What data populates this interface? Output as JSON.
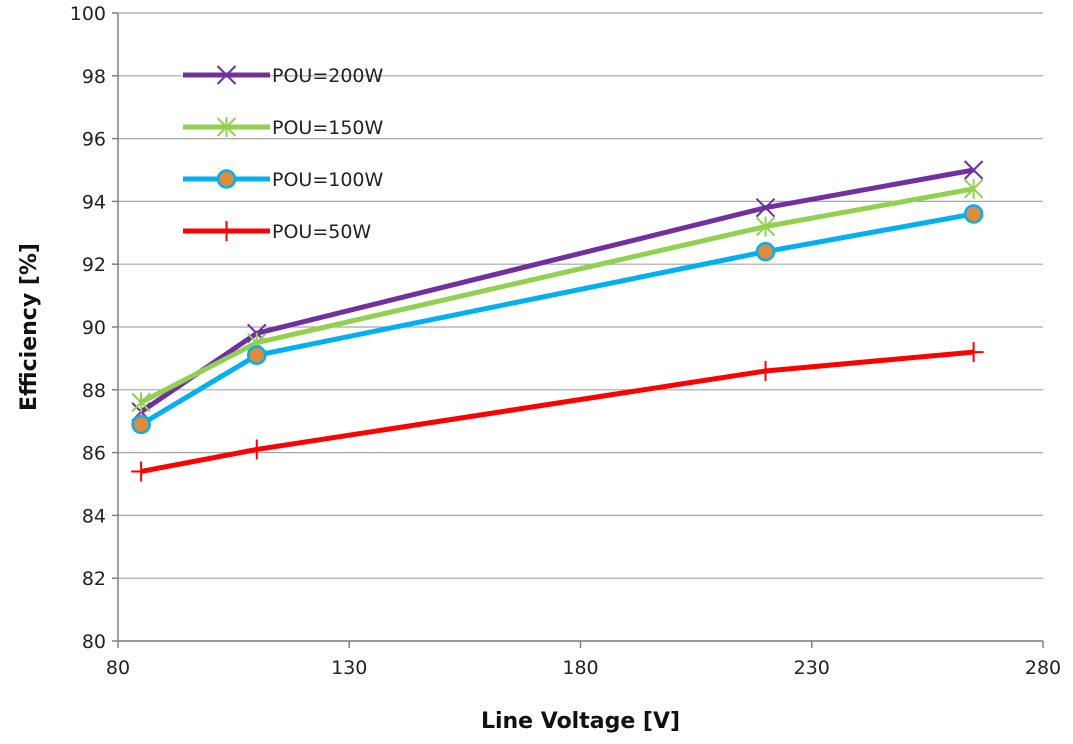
{
  "chart_data": {
    "type": "line",
    "title": "",
    "xlabel": "Line Voltage [V]",
    "ylabel": "Efficiency [%]",
    "xlim": [
      80,
      280
    ],
    "ylim": [
      80,
      100
    ],
    "xticks": [
      80,
      130,
      180,
      230,
      280
    ],
    "yticks": [
      80,
      82,
      84,
      86,
      88,
      90,
      92,
      94,
      96,
      98,
      100
    ],
    "grid": "horizontal",
    "legend_position": "top-left",
    "series": [
      {
        "name": "POU=200W",
        "color": "#7030a0",
        "marker": "x",
        "x": [
          85,
          110,
          220,
          265
        ],
        "y": [
          87.3,
          89.8,
          93.8,
          95.0
        ]
      },
      {
        "name": "POU=150W",
        "color": "#92d050",
        "marker": "star",
        "x": [
          85,
          110,
          220,
          265
        ],
        "y": [
          87.6,
          89.5,
          93.2,
          94.4
        ]
      },
      {
        "name": "POU=100W",
        "color": "#00b0f0",
        "marker": "circle",
        "marker_fill": "#e08a3c",
        "x": [
          85,
          110,
          220,
          265
        ],
        "y": [
          86.9,
          89.1,
          92.4,
          93.6
        ]
      },
      {
        "name": "POU=50W",
        "color": "#ff0000",
        "marker": "plus",
        "x": [
          85,
          110,
          220,
          265
        ],
        "y": [
          85.4,
          86.1,
          88.6,
          89.2
        ]
      }
    ]
  }
}
